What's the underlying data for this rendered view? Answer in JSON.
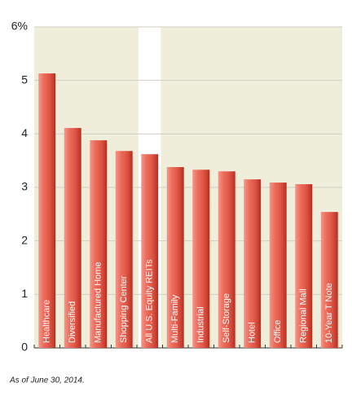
{
  "chart_data": {
    "type": "bar",
    "categories": [
      "Healthcare",
      "Diversified",
      "Manufactured Home",
      "Shopping Center",
      "All U.S. Equity REITs",
      "Multi-Family",
      "Industrial",
      "Self-Storage",
      "Hotel",
      "Office",
      "Regional Mall",
      "10-Year T Note"
    ],
    "values": [
      5.13,
      4.11,
      3.88,
      3.68,
      3.62,
      3.38,
      3.33,
      3.3,
      3.15,
      3.09,
      3.06,
      2.54
    ],
    "color": "#e8412b",
    "ylim": [
      0,
      6
    ],
    "yticks": [
      0,
      1,
      2,
      3,
      4,
      5,
      {
        "value": 6,
        "label": "6%"
      }
    ],
    "grid": true,
    "highlight_index": 4,
    "footnote": "As of June 30, 2014."
  }
}
